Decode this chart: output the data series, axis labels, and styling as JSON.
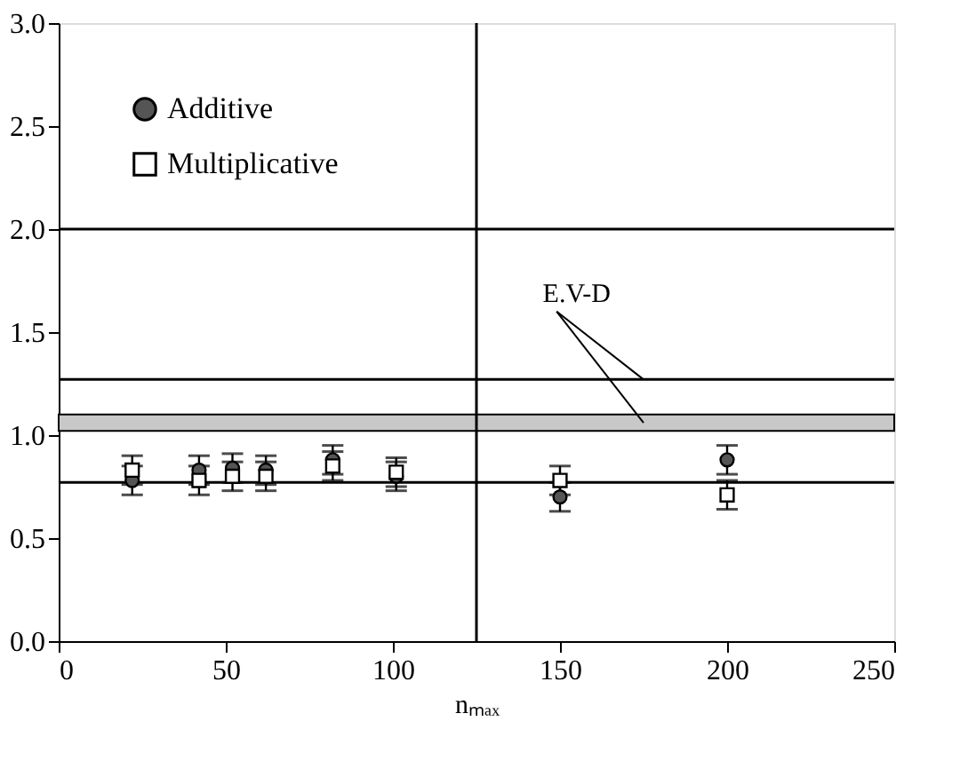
{
  "chart_data": {
    "type": "scatter",
    "xlabel": "nₘₐₓ",
    "x": [
      22,
      42,
      52,
      62,
      82,
      101,
      150,
      200
    ],
    "series": [
      {
        "name": "Additive",
        "color": "#555555",
        "marker": "circle",
        "values": [
          0.78,
          0.83,
          0.84,
          0.83,
          0.88,
          0.8,
          0.7,
          0.88
        ],
        "errors": [
          0.07,
          0.07,
          0.07,
          0.07,
          0.07,
          0.07,
          0.07,
          0.07
        ]
      },
      {
        "name": "Multiplicative",
        "color": "#ffffff",
        "marker": "square",
        "values": [
          0.83,
          0.78,
          0.8,
          0.8,
          0.85,
          0.82,
          0.78,
          0.71
        ],
        "errors": [
          0.07,
          0.07,
          0.07,
          0.07,
          0.07,
          0.07,
          0.07,
          0.07
        ]
      }
    ],
    "xlim": [
      0,
      250
    ],
    "xticks": [
      0,
      50,
      100,
      150,
      200,
      250
    ],
    "ylim": [
      0,
      3
    ],
    "yticks": [
      {
        "value": 0,
        "label": "0.0"
      },
      {
        "value": 0.5,
        "label": "0.5"
      },
      {
        "value": 1,
        "label": "1.0"
      },
      {
        "value": 1.5,
        "label": "1.5"
      },
      {
        "value": 2,
        "label": "2.0"
      },
      {
        "value": 2.5,
        "label": "2.5"
      },
      {
        "value": 3,
        "label": "3.0"
      }
    ],
    "ref_lines": [
      {
        "axis": "y",
        "value": 2.0
      },
      {
        "axis": "y",
        "value": 1.27
      },
      {
        "axis": "y",
        "value": 0.77
      },
      {
        "axis": "x",
        "value": 125
      }
    ],
    "bands": [
      {
        "axis": "y",
        "from": 1.02,
        "to": 1.1,
        "color": "#c8c8c8"
      }
    ],
    "annotations": [
      {
        "text": "E.V-D",
        "x": 175,
        "y": 1.27
      }
    ],
    "legend": "top left",
    "grid": false
  }
}
